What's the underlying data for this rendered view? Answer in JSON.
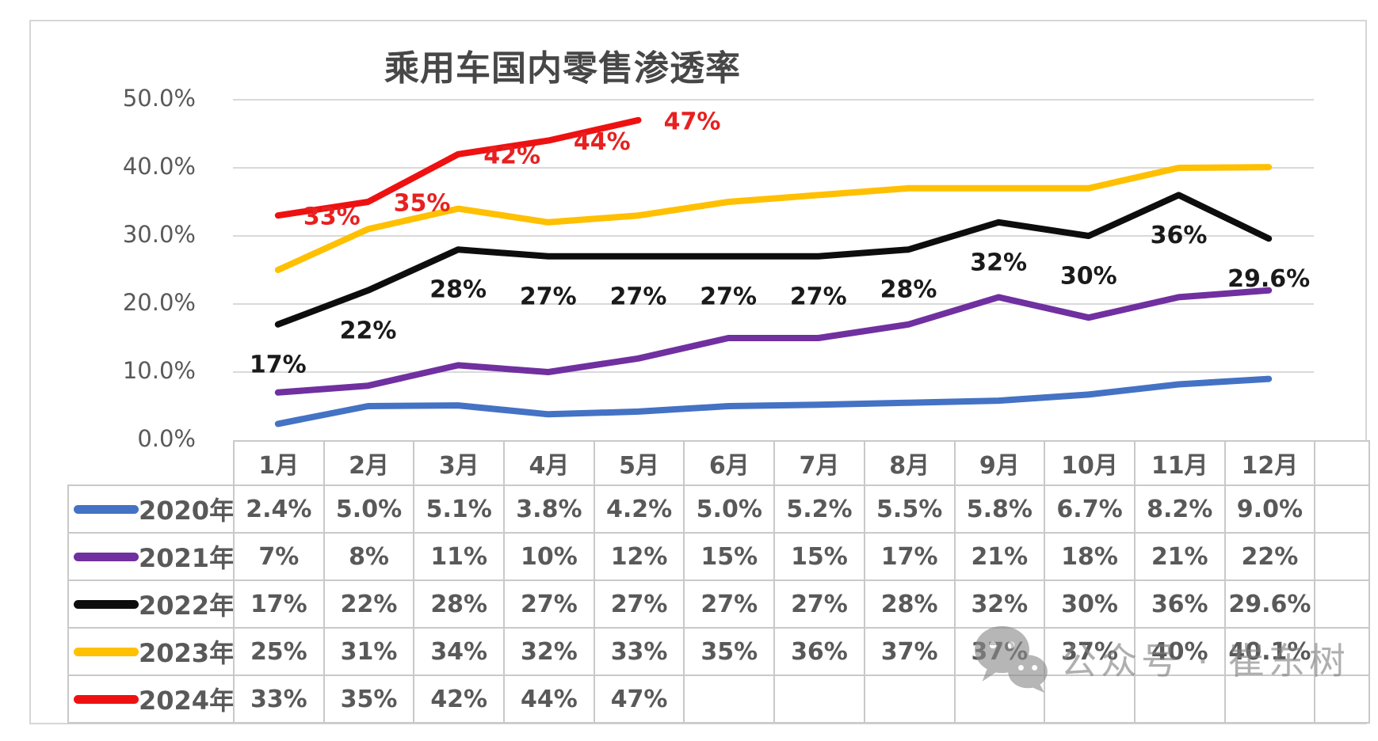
{
  "chart": {
    "title": "乘用车国内零售渗透率",
    "watermark": {
      "icon": "wechat-icon",
      "text": "公众号 · 崔东树"
    }
  },
  "chart_data": {
    "type": "line",
    "title": "乘用车国内零售渗透率",
    "categories": [
      "1月",
      "2月",
      "3月",
      "4月",
      "5月",
      "6月",
      "7月",
      "8月",
      "9月",
      "10月",
      "11月",
      "12月"
    ],
    "y_ticks": [
      "0.0%",
      "10.0%",
      "20.0%",
      "30.0%",
      "40.0%",
      "50.0%"
    ],
    "ylim": [
      0,
      50
    ],
    "grid": true,
    "legend_position": "table-left",
    "grid_color": "#d9d9d9",
    "axis_label_color": "#595959",
    "series": [
      {
        "name": "2020年",
        "color": "#4472C4",
        "data_labels": "none",
        "values": [
          2.4,
          5.0,
          5.1,
          3.8,
          4.2,
          5.0,
          5.2,
          5.5,
          5.8,
          6.7,
          8.2,
          9.0
        ],
        "display": [
          "2.4%",
          "5.0%",
          "5.1%",
          "3.8%",
          "4.2%",
          "5.0%",
          "5.2%",
          "5.5%",
          "5.8%",
          "6.7%",
          "8.2%",
          "9.0%"
        ]
      },
      {
        "name": "2021年",
        "color": "#7030A0",
        "data_labels": "none",
        "values": [
          7,
          8,
          11,
          10,
          12,
          15,
          15,
          17,
          21,
          18,
          21,
          22
        ],
        "display": [
          "7%",
          "8%",
          "11%",
          "10%",
          "12%",
          "15%",
          "15%",
          "17%",
          "21%",
          "18%",
          "21%",
          "22%"
        ]
      },
      {
        "name": "2022年",
        "color": "#0d0d0d",
        "data_labels": "below",
        "label_color": "#1a1a1a",
        "values": [
          17,
          22,
          28,
          27,
          27,
          27,
          27,
          28,
          32,
          30,
          36,
          29.6
        ],
        "display": [
          "17%",
          "22%",
          "28%",
          "27%",
          "27%",
          "27%",
          "27%",
          "28%",
          "32%",
          "30%",
          "36%",
          "29.6%"
        ]
      },
      {
        "name": "2023年",
        "color": "#FFC000",
        "data_labels": "none",
        "values": [
          25,
          31,
          34,
          32,
          33,
          35,
          36,
          37,
          37,
          37,
          40,
          40.1
        ],
        "display": [
          "25%",
          "31%",
          "34%",
          "32%",
          "33%",
          "35%",
          "36%",
          "37%",
          "37%",
          "37%",
          "40%",
          "40.1%"
        ]
      },
      {
        "name": "2024年",
        "color": "#EE1111",
        "data_labels": "right",
        "label_color": "#E82020",
        "values": [
          33,
          35,
          42,
          44,
          47,
          null,
          null,
          null,
          null,
          null,
          null,
          null
        ],
        "display": [
          "33%",
          "35%",
          "42%",
          "44%",
          "47%",
          "",
          "",
          "",
          "",
          "",
          "",
          ""
        ]
      }
    ]
  }
}
